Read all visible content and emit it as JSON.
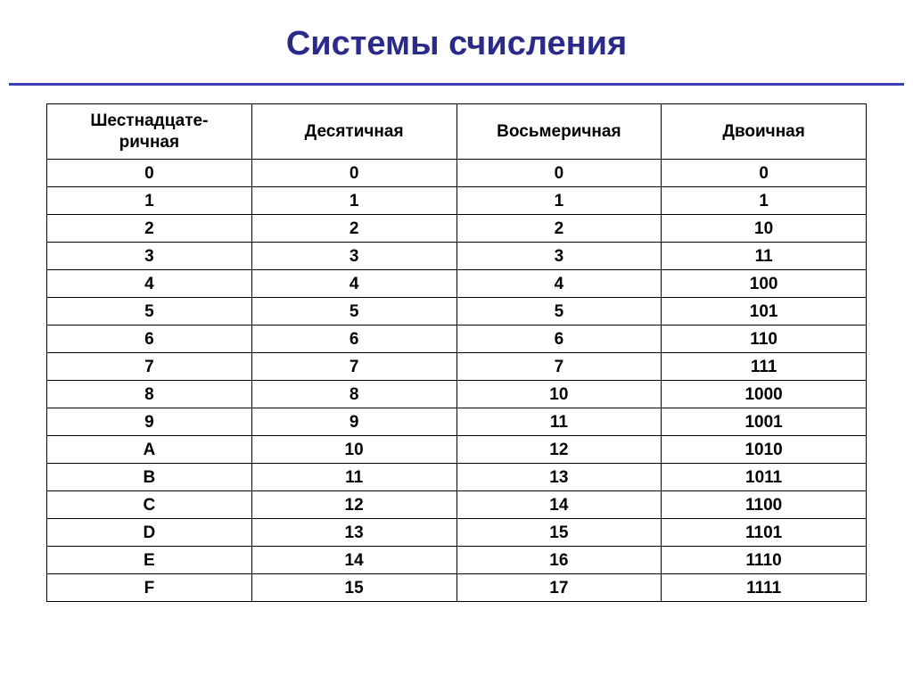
{
  "title": "Системы счисления",
  "table": {
    "columns": [
      "Шестнадцате-\nричная",
      "Десятичная",
      "Восьмеричная",
      "Двоичная"
    ],
    "rows": [
      [
        "0",
        "0",
        "0",
        "0"
      ],
      [
        "1",
        "1",
        "1",
        "1"
      ],
      [
        "2",
        "2",
        "2",
        "10"
      ],
      [
        "3",
        "3",
        "3",
        "11"
      ],
      [
        "4",
        "4",
        "4",
        "100"
      ],
      [
        "5",
        "5",
        "5",
        "101"
      ],
      [
        "6",
        "6",
        "6",
        "110"
      ],
      [
        "7",
        "7",
        "7",
        "111"
      ],
      [
        "8",
        "8",
        "10",
        "1000"
      ],
      [
        "9",
        "9",
        "11",
        "1001"
      ],
      [
        "A",
        "10",
        "12",
        "1010"
      ],
      [
        "B",
        "11",
        "13",
        "1011"
      ],
      [
        "C",
        "12",
        "14",
        "1100"
      ],
      [
        "D",
        "13",
        "15",
        "1101"
      ],
      [
        "E",
        "14",
        "16",
        "1110"
      ],
      [
        "F",
        "15",
        "17",
        "1111"
      ]
    ],
    "header_fontsize": 19,
    "cell_fontsize": 19,
    "border_color": "#000000",
    "title_color": "#2a2a8a",
    "rule_color": "#3b3bb5",
    "background_color": "#ffffff"
  }
}
